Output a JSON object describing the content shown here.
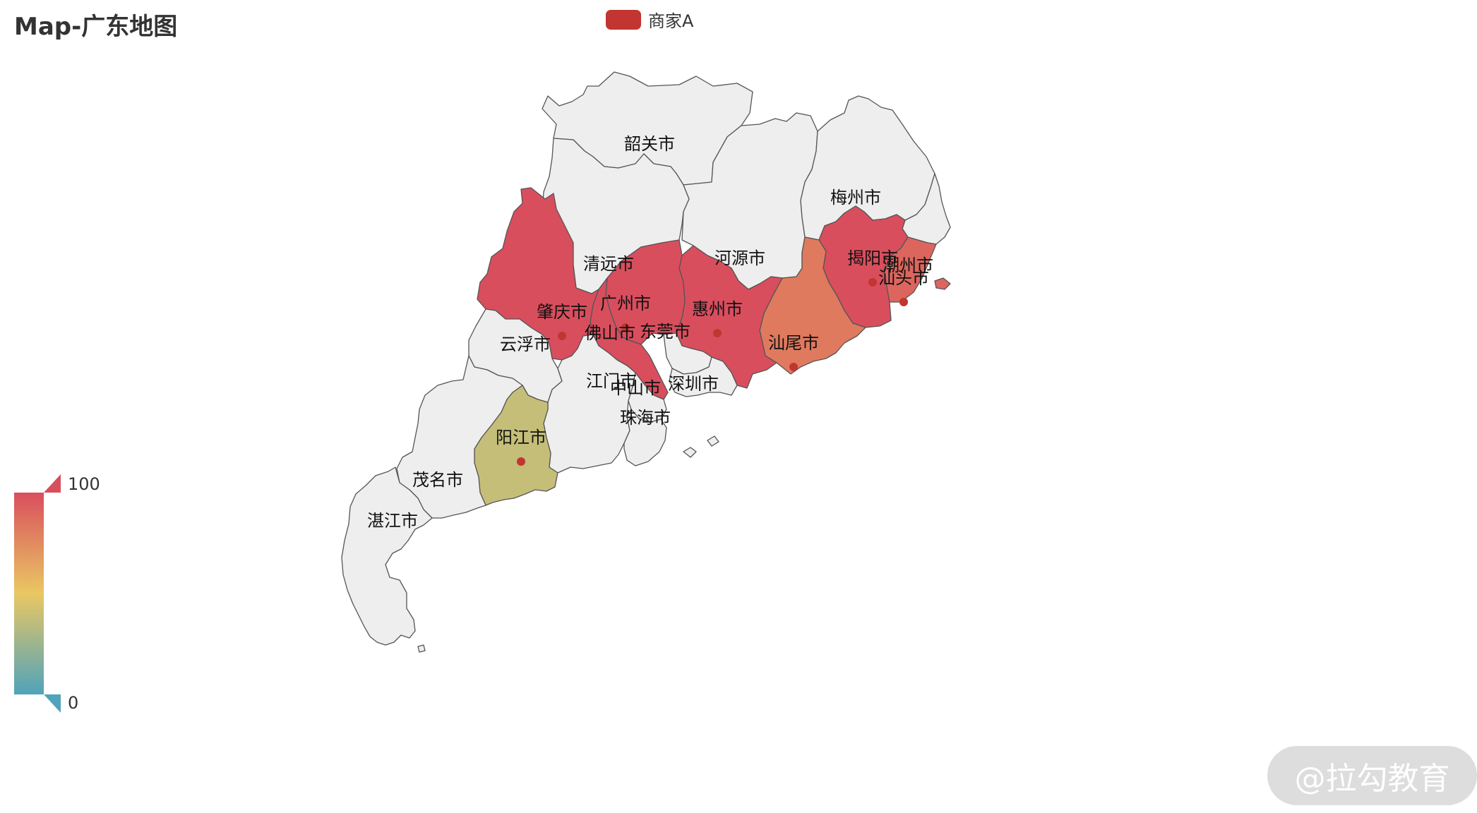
{
  "title": "Map-广东地图",
  "legend": {
    "label": "商家A",
    "color": "#c23531"
  },
  "visual_map": {
    "max_label": "100",
    "min_label": "0",
    "colors": [
      "#50a3ba",
      "#eac763",
      "#d94e5d"
    ]
  },
  "watermark": "@拉勾教育",
  "chart_data": {
    "type": "map",
    "map": "广东",
    "series_name": "商家A",
    "visual_range": [
      0,
      100
    ],
    "regions": [
      {
        "name": "韶关市",
        "value": null
      },
      {
        "name": "清远市",
        "value": null
      },
      {
        "name": "河源市",
        "value": null
      },
      {
        "name": "梅州市",
        "value": null
      },
      {
        "name": "潮州市",
        "value": null
      },
      {
        "name": "揭阳市",
        "value": 100
      },
      {
        "name": "汕头市",
        "value": 90
      },
      {
        "name": "汕尾市",
        "value": 82
      },
      {
        "name": "惠州市",
        "value": 100
      },
      {
        "name": "广州市",
        "value": 100
      },
      {
        "name": "东莞市",
        "value": null
      },
      {
        "name": "深圳市",
        "value": null
      },
      {
        "name": "佛山市",
        "value": 100
      },
      {
        "name": "肇庆市",
        "value": 100
      },
      {
        "name": "云浮市",
        "value": null
      },
      {
        "name": "江门市",
        "value": null
      },
      {
        "name": "中山市",
        "value": null
      },
      {
        "name": "珠海市",
        "value": null
      },
      {
        "name": "阳江市",
        "value": 38
      },
      {
        "name": "茂名市",
        "value": null
      },
      {
        "name": "湛江市",
        "value": null
      }
    ]
  }
}
